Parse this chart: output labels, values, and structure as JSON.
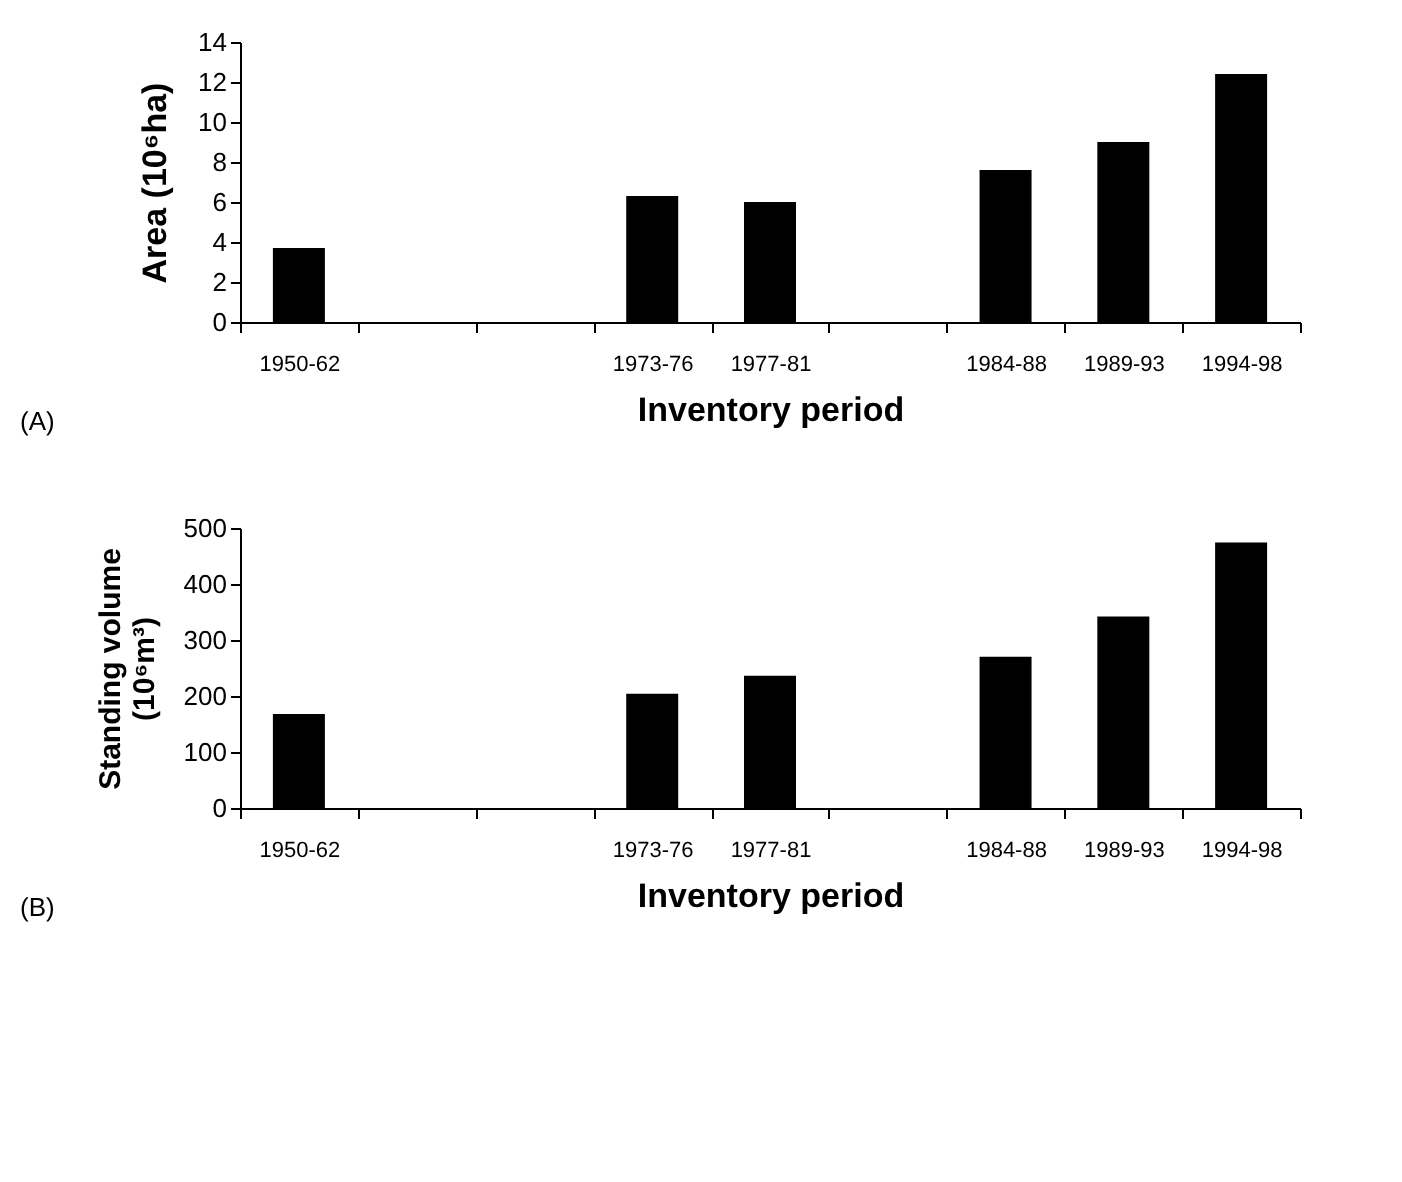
{
  "chart_data": [
    {
      "type": "bar",
      "xlabel": "Inventory period",
      "ylabel": "Area (10⁶ha)",
      "annotations": [
        "(A)"
      ],
      "categories": [
        "1950-62",
        null,
        null,
        "1973-76",
        "1977-81",
        null,
        "1984-88",
        "1989-93",
        "1994-98"
      ],
      "values": [
        3.7,
        null,
        null,
        6.3,
        6.0,
        null,
        7.6,
        9.0,
        12.4
      ],
      "color": "#000000",
      "ylim": [
        0,
        14
      ],
      "yticks": [
        0,
        2,
        4,
        6,
        8,
        10,
        12,
        14
      ],
      "grid": false
    },
    {
      "type": "bar",
      "xlabel": "Inventory period",
      "ylabel": "Standing volume\n(10⁶m³)",
      "annotations": [
        "(B)"
      ],
      "categories": [
        "1950-62",
        null,
        null,
        "1973-76",
        "1977-81",
        null,
        "1984-88",
        "1989-93",
        "1994-98"
      ],
      "values": [
        168,
        null,
        null,
        204,
        236,
        null,
        270,
        342,
        474
      ],
      "color": "#000000",
      "ylim": [
        0,
        500
      ],
      "yticks": [
        0,
        100,
        200,
        300,
        400,
        500
      ],
      "grid": false
    }
  ]
}
